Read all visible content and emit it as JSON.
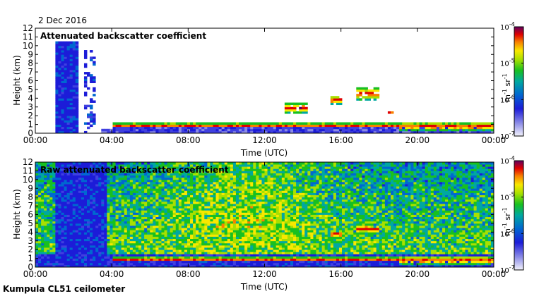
{
  "date": "2 Dec 2016",
  "footer": "Kumpula CL51 ceilometer",
  "colorbar": {
    "unit_main": "m",
    "unit_exp1": "-1",
    "unit_mid": " sr",
    "unit_exp2": "-1",
    "ticks": [
      {
        "base": "10",
        "exp": "-4",
        "value": 0.0001
      },
      {
        "base": "10",
        "exp": "-5",
        "value": 1e-05
      },
      {
        "base": "10",
        "exp": "-6",
        "value": 1e-06
      },
      {
        "base": "10",
        "exp": "-7",
        "value": 1e-07
      }
    ]
  },
  "chart_data": [
    {
      "type": "heatmap",
      "title": "Attenuated backscatter coefficient",
      "xlabel": "Time (UTC)",
      "ylabel": "Height (km)",
      "x_ticks": [
        "00:00",
        "04:00",
        "08:00",
        "12:00",
        "16:00",
        "20:00",
        "00:00"
      ],
      "xlim_hours": [
        0,
        24
      ],
      "y_ticks": [
        0,
        1,
        2,
        3,
        4,
        5,
        6,
        7,
        8,
        9,
        10,
        11,
        12
      ],
      "ylim_km": [
        0,
        12
      ],
      "color_scale": "log",
      "clim": [
        1e-07,
        0.0001
      ],
      "features": [
        {
          "kind": "precipitation",
          "t_start": 1.0,
          "t_end": 2.3,
          "top_km": 10.5
        },
        {
          "kind": "precipitation streaks",
          "t_start": 2.5,
          "t_end": 3.2,
          "top_km": 9.5
        },
        {
          "kind": "boundary layer top",
          "t_start": 4.0,
          "t_end": 24.0,
          "height_km": 0.9
        },
        {
          "kind": "cloud",
          "t_start": 13.0,
          "t_end": 14.3,
          "base_km": 2.3,
          "top_km": 3.5
        },
        {
          "kind": "cloud",
          "t_start": 15.5,
          "t_end": 16.0,
          "base_km": 3.3,
          "top_km": 4.3
        },
        {
          "kind": "cloud",
          "t_start": 16.8,
          "t_end": 18.0,
          "base_km": 3.8,
          "top_km": 5.3
        },
        {
          "kind": "cloud",
          "t_start": 18.5,
          "t_end": 18.8,
          "base_km": 2.2,
          "top_km": 2.6
        },
        {
          "kind": "low cloud",
          "t_start": 19.0,
          "t_end": 24.0,
          "base_km": 0.3,
          "top_km": 1.3
        }
      ]
    },
    {
      "type": "heatmap",
      "title": "Raw attenuated backscatter coefficient",
      "xlabel": "Time (UTC)",
      "ylabel": "Height (km)",
      "x_ticks": [
        "00:00",
        "04:00",
        "08:00",
        "12:00",
        "16:00",
        "20:00",
        "00:00"
      ],
      "xlim_hours": [
        0,
        24
      ],
      "y_ticks": [
        0,
        1,
        2,
        3,
        4,
        5,
        6,
        7,
        8,
        9,
        10,
        11,
        12
      ],
      "ylim_km": [
        0,
        12
      ],
      "color_scale": "log",
      "clim": [
        1e-07,
        0.0001
      ],
      "features": [
        {
          "kind": "noise background",
          "t_start": 0,
          "t_end": 24,
          "peak_hour": 11
        },
        {
          "kind": "precipitation",
          "t_start": 1.0,
          "t_end": 3.8,
          "top_km": 12
        },
        {
          "kind": "boundary layer top",
          "t_start": 4.0,
          "t_end": 24.0,
          "height_km": 0.9
        },
        {
          "kind": "cloud",
          "t_start": 15.5,
          "t_end": 16.0,
          "base_km": 3.3,
          "top_km": 4.3
        },
        {
          "kind": "cloud",
          "t_start": 16.8,
          "t_end": 18.0,
          "base_km": 3.8,
          "top_km": 5.0
        },
        {
          "kind": "low cloud",
          "t_start": 19.0,
          "t_end": 24.0,
          "base_km": 0.3,
          "top_km": 1.3
        }
      ]
    }
  ]
}
